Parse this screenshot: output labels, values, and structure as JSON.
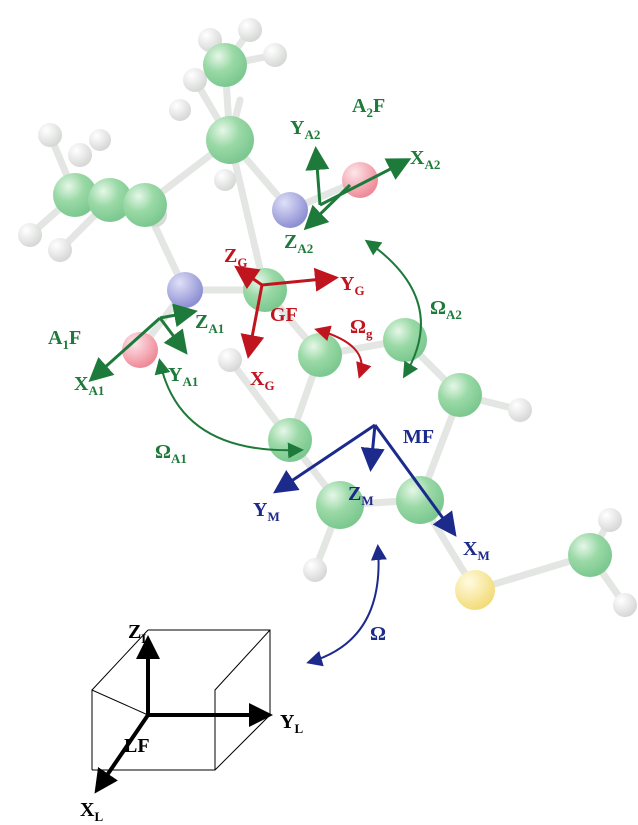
{
  "labels": {
    "a2f": {
      "main": "A",
      "sub": "2",
      "tail": "F"
    },
    "y_a2": {
      "main": "Y",
      "sub": "A2"
    },
    "x_a2": {
      "main": "X",
      "sub": "A2"
    },
    "z_a2": {
      "main": "Z",
      "sub": "A2"
    },
    "z_g": {
      "main": "Z",
      "sub": "G"
    },
    "y_g": {
      "main": "Y",
      "sub": "G"
    },
    "gf": "GF",
    "omega_g": {
      "main": "Ω",
      "sub": "g"
    },
    "omega_a2": {
      "main": "Ω",
      "sub": "A2"
    },
    "a1f": {
      "main": "A",
      "sub": "1",
      "tail": "F"
    },
    "z_a1": {
      "main": "Z",
      "sub": "A1"
    },
    "x_a1": {
      "main": "X",
      "sub": "A1"
    },
    "y_a1": {
      "main": "Y",
      "sub": "A1"
    },
    "x_g": {
      "main": "X",
      "sub": "G"
    },
    "omega_a1": {
      "main": "Ω",
      "sub": "A1"
    },
    "mf": "MF",
    "y_m": {
      "main": "Y",
      "sub": "M"
    },
    "z_m": {
      "main": "Z",
      "sub": "M"
    },
    "x_m": {
      "main": "X",
      "sub": "M"
    },
    "omega": "Ω",
    "z_l": {
      "main": "Z",
      "sub": "L"
    },
    "y_l": {
      "main": "Y",
      "sub": "L"
    },
    "lf": "LF",
    "x_l": {
      "main": "X",
      "sub": "L"
    }
  }
}
